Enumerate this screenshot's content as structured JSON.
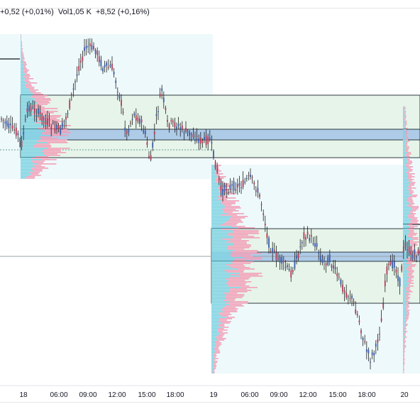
{
  "legend": {
    "change": "+0,52 (+0,01%)",
    "volume": "Vol1,05 K",
    "change2": "+8,52 (+0,16%)"
  },
  "chart_data": {
    "type": "candlestick",
    "x_ticks": [
      "18",
      "06:00",
      "09:00",
      "12:00",
      "15:00",
      "18:00",
      "19",
      "06:00",
      "09:00",
      "12:00",
      "15:00",
      "18:00",
      "20"
    ],
    "colors": {
      "up": "#3a5ba9",
      "down": "#b23a55",
      "profile_up": "#7fd3e3",
      "profile_down": "#f2a0b8",
      "value_area": "#e6f4ea",
      "poc": "#aecbe8",
      "session_bg": "#eef9fb"
    }
  }
}
